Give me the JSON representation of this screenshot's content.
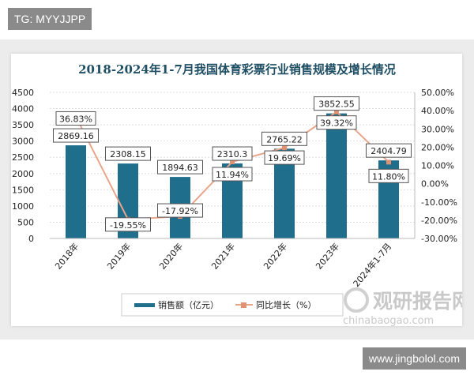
{
  "watermark_tag": "TG: MYYJJPP",
  "site_tag": "www.jingbolol.com",
  "logo": {
    "name": "观研报告网",
    "url": "chinabaogao.com"
  },
  "colors": {
    "bar": "#1f6e8c",
    "line": "#e8a58a",
    "marker": "#e29274",
    "title": "#1e4e64"
  },
  "chart_data": {
    "type": "bar+line",
    "title": "2018-2024年1-7月我国体育彩票行业销售规模及增长情况",
    "categories": [
      "2018年",
      "2019年",
      "2020年",
      "2021年",
      "2022年",
      "2023年",
      "2024年1-7月"
    ],
    "series": [
      {
        "name": "销售额（亿元）",
        "type": "bar",
        "axis": "left",
        "values": [
          2869.16,
          2308.15,
          1894.63,
          2310.3,
          2765.22,
          3852.55,
          2404.79
        ],
        "labels": [
          "2869.16",
          "2308.15",
          "1894.63",
          "2310.3",
          "2765.22",
          "3852.55",
          "2404.79"
        ]
      },
      {
        "name": "同比增长（%）",
        "type": "line",
        "axis": "right",
        "values": [
          36.83,
          -19.55,
          -17.92,
          11.94,
          19.69,
          39.32,
          11.8
        ],
        "labels": [
          "36.83%",
          "-19.55%",
          "-17.92%",
          "11.94%",
          "19.69%",
          "39.32%",
          "11.80%"
        ]
      }
    ],
    "left_axis": {
      "ylim": [
        0,
        4500
      ],
      "ticks": [
        "0",
        "500",
        "1000",
        "1500",
        "2000",
        "2500",
        "3000",
        "3500",
        "4000",
        "4500"
      ]
    },
    "right_axis": {
      "ylim": [
        -30,
        50
      ],
      "ticks": [
        "-30.00%",
        "-20.00%",
        "-10.00%",
        "0.00%",
        "10.00%",
        "20.00%",
        "30.00%",
        "40.00%",
        "50.00%"
      ]
    },
    "grid": true,
    "legend": "bottom"
  }
}
